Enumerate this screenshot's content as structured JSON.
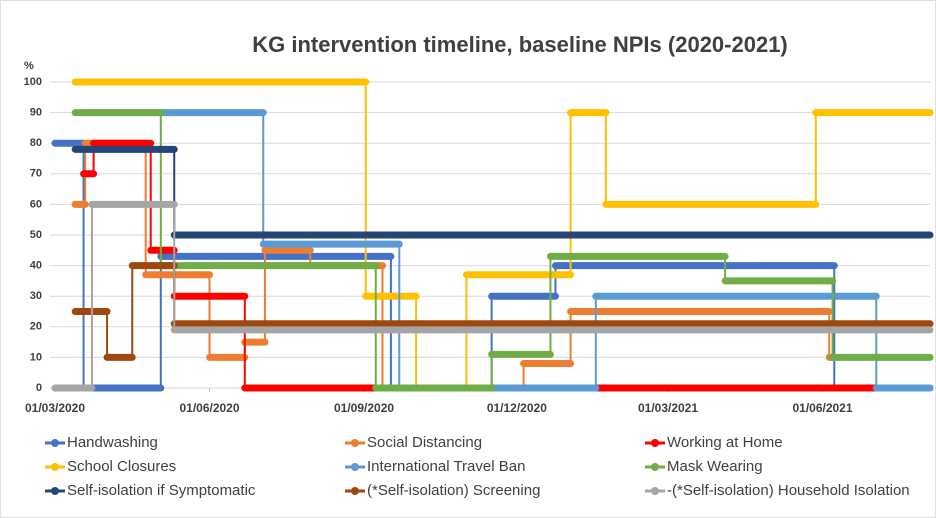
{
  "chart_data": {
    "type": "step-line",
    "title": "KG intervention timeline, baseline NPIs (2020-2021)",
    "y_label": "%",
    "xlim": [
      "2020-03-01",
      "2021-08-04"
    ],
    "xticks": [
      {
        "value": "2020-03-01",
        "label": "01/03/2020"
      },
      {
        "value": "2020-06-01",
        "label": "01/06/2020"
      },
      {
        "value": "2020-09-01",
        "label": "01/09/2020"
      },
      {
        "value": "2020-12-01",
        "label": "01/12/2020"
      },
      {
        "value": "2021-03-01",
        "label": "01/03/2021"
      },
      {
        "value": "2021-06-01",
        "label": "01/06/2021"
      }
    ],
    "ylim": [
      0,
      100
    ],
    "yticks": [
      0,
      10,
      20,
      30,
      40,
      50,
      60,
      70,
      80,
      90,
      100
    ],
    "grid": true,
    "legend": "bottom",
    "series": [
      {
        "name": "Handwashing",
        "color": "#4472c4",
        "x": [
          "2020-03-01",
          "2020-03-18",
          "2020-05-03",
          "2020-09-17",
          "2020-11-16",
          "2020-12-24",
          "2021-06-08",
          "2021-08-04"
        ],
        "values": [
          80,
          0,
          43,
          0,
          30,
          40,
          0,
          0
        ]
      },
      {
        "name": "Social Distancing",
        "color": "#ed7d31",
        "x": [
          "2020-03-13",
          "2020-03-19",
          "2020-04-24",
          "2020-06-01",
          "2020-06-22",
          "2020-07-04",
          "2020-07-31",
          "2020-09-12",
          "2020-12-05",
          "2021-01-02",
          "2021-06-05",
          "2021-06-08"
        ],
        "values": [
          60,
          80,
          37,
          10,
          15,
          45,
          40,
          0,
          8,
          25,
          10,
          10
        ]
      },
      {
        "name": "Working at Home",
        "color": "#ff0000",
        "x": [
          "2020-03-18",
          "2020-03-24",
          "2020-04-27",
          "2020-05-11",
          "2020-06-22",
          "2021-07-03"
        ],
        "values": [
          70,
          80,
          45,
          30,
          0,
          0
        ]
      },
      {
        "name": "School Closures",
        "color": "#ffc000",
        "x": [
          "2020-03-13",
          "2020-09-02",
          "2020-10-02",
          "2020-11-01",
          "2021-01-02",
          "2021-01-23",
          "2021-05-28",
          "2021-08-04"
        ],
        "values": [
          100,
          30,
          0,
          37,
          90,
          60,
          90,
          90
        ]
      },
      {
        "name": "International Travel Ban",
        "color": "#5b9bd5",
        "x": [
          "2020-03-18",
          "2020-07-03",
          "2020-09-22",
          "2021-01-17",
          "2021-07-03",
          "2021-08-04"
        ],
        "values": [
          90,
          47,
          0,
          30,
          0,
          0
        ]
      },
      {
        "name": "Mask Wearing",
        "color": "#70ad47",
        "x": [
          "2020-03-13",
          "2020-05-03",
          "2020-09-08",
          "2020-11-16",
          "2020-12-21",
          "2021-04-04",
          "2021-06-07",
          "2021-08-04"
        ],
        "values": [
          90,
          40,
          0,
          11,
          43,
          35,
          10,
          10
        ]
      },
      {
        "name": "Self-isolation if Symptomatic",
        "color": "#264478",
        "x": [
          "2020-03-13",
          "2020-05-11",
          "2021-08-04"
        ],
        "values": [
          78,
          50,
          50
        ]
      },
      {
        "name": "(*Self-isolation) Screening",
        "color": "#9e480e",
        "x": [
          "2020-03-13",
          "2020-04-01",
          "2020-04-16",
          "2020-05-11",
          "2021-08-04"
        ],
        "values": [
          25,
          10,
          40,
          21,
          21
        ]
      },
      {
        "name": "-(*Self-isolation) Household Isolation",
        "color": "#a5a5a5",
        "x": [
          "2020-03-01",
          "2020-03-23",
          "2020-05-11",
          "2021-08-04"
        ],
        "values": [
          0,
          60,
          19,
          19
        ]
      }
    ]
  }
}
